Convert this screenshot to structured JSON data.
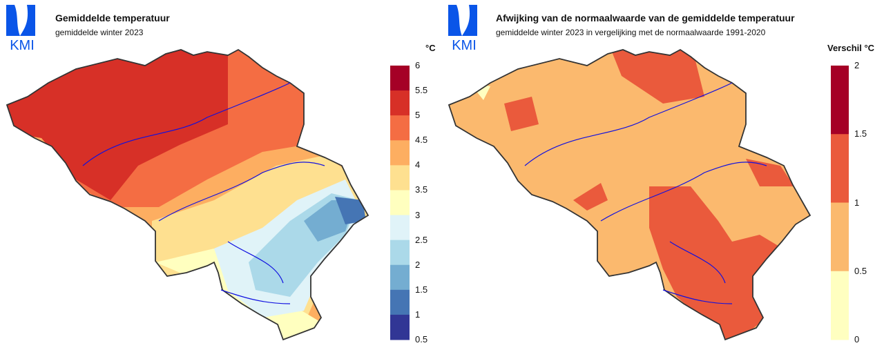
{
  "left_panel": {
    "logo_text": "KMI",
    "title": "Gemiddelde temperatuur",
    "subtitle": "gemiddelde winter 2023",
    "legend_unit": "°C",
    "legend_labels": [
      "6",
      "5.5",
      "5",
      "4.5",
      "4",
      "3.5",
      "3",
      "2.5",
      "2",
      "1.5",
      "1",
      "0.5"
    ],
    "legend_colors": [
      "#a50026",
      "#d73027",
      "#f46d43",
      "#fdae61",
      "#fee090",
      "#ffffbf",
      "#e0f3f8",
      "#abd9e9",
      "#74add1",
      "#4575b4",
      "#313695"
    ]
  },
  "right_panel": {
    "logo_text": "KMI",
    "title": "Afwijking van de normaalwaarde van de gemiddelde temperatuur",
    "subtitle": "gemiddelde winter 2023 in vergelijking met de normaalwaarde 1991-2020",
    "legend_unit": "Verschil °C",
    "legend_labels": [
      "2",
      "1.5",
      "1",
      "0.5",
      "0"
    ],
    "legend_colors": [
      "#a50026",
      "#ea5a3c",
      "#fbb96e",
      "#ffffc0"
    ]
  }
}
